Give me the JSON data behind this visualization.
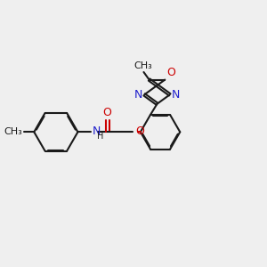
{
  "bg_color": "#efefef",
  "bond_color": "#1a1a1a",
  "N_color": "#2020cc",
  "O_color": "#cc0000",
  "font_size": 9,
  "bond_lw": 1.5,
  "dbo": 0.028,
  "xlim": [
    0,
    8.5
  ],
  "ylim": [
    1.0,
    7.5
  ]
}
